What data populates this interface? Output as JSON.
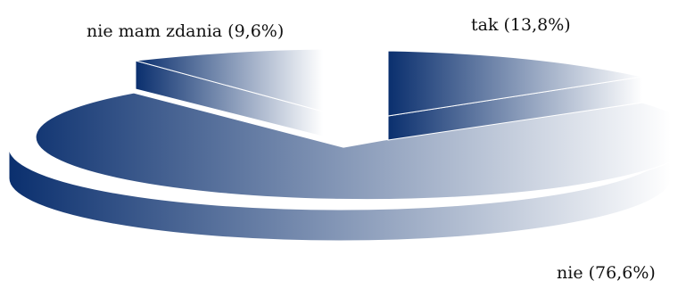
{
  "chart_data": {
    "type": "pie",
    "style": "3d-exploded",
    "title": "",
    "slices": [
      {
        "label": "tak (13,8%)",
        "name": "tak",
        "value": 13.8,
        "exploded": true
      },
      {
        "label": "nie (76,6%)",
        "name": "nie",
        "value": 76.6,
        "exploded": false
      },
      {
        "label": "nie mam zdania (9,6%)",
        "name": "nie mam zdania",
        "value": 9.6,
        "exploded": true
      }
    ],
    "colors": {
      "gradient_dark": "#0a2f6e",
      "gradient_light": "#ffffff",
      "edge": "#ffffff"
    }
  }
}
